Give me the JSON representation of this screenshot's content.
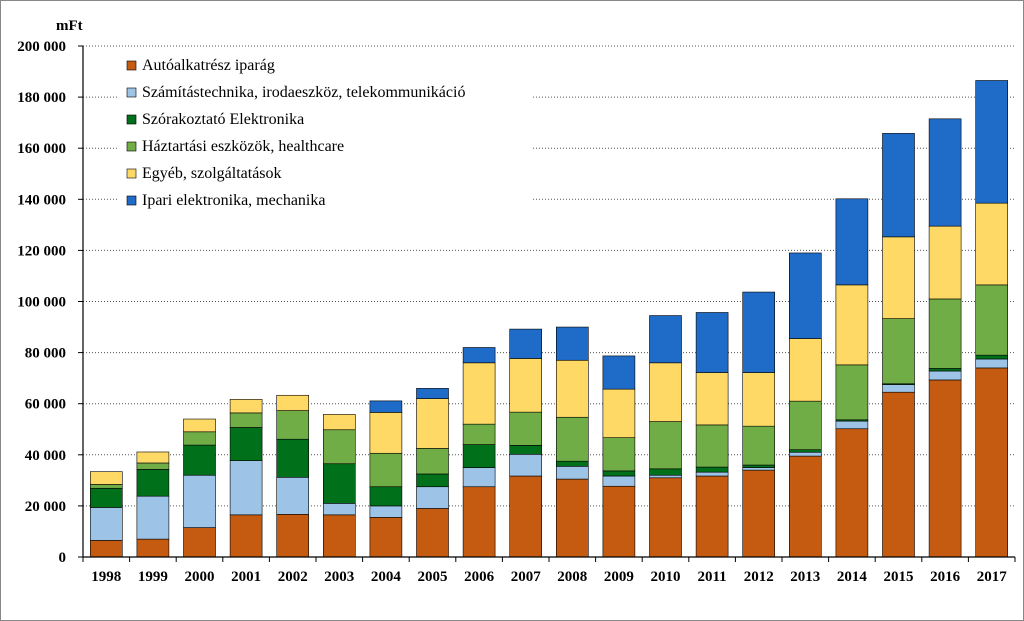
{
  "chart_data": {
    "type": "bar",
    "stacked": true,
    "unit_label": "mFt",
    "title": "",
    "xlabel": "",
    "ylabel": "",
    "ylim": [
      0,
      200000
    ],
    "y_ticks": [
      0,
      20000,
      40000,
      60000,
      80000,
      100000,
      120000,
      140000,
      160000,
      180000,
      200000
    ],
    "y_tick_labels": [
      "0",
      "20 000",
      "40 000",
      "60 000",
      "80 000",
      "100 000",
      "120 000",
      "140 000",
      "160 000",
      "180 000",
      "200 000"
    ],
    "grid": "horizontal dotted",
    "legend_position": "top-left",
    "categories": [
      "1998",
      "1999",
      "2000",
      "2001",
      "2002",
      "2003",
      "2004",
      "2005",
      "2006",
      "2007",
      "2008",
      "2009",
      "2010",
      "2011",
      "2012",
      "2013",
      "2014",
      "2015",
      "2016",
      "2017"
    ],
    "series": [
      {
        "name": "Autóalkatrész iparág",
        "color": "#C55A11",
        "values": [
          6500,
          7000,
          11500,
          16500,
          16700,
          16500,
          15500,
          19000,
          27500,
          31700,
          30500,
          27700,
          31000,
          31700,
          34000,
          39500,
          50200,
          64500,
          69300,
          74000
        ]
      },
      {
        "name": "Számítástechnika, irodaeszköz, telekommunikáció",
        "color": "#9DC3E6",
        "values": [
          12900,
          16800,
          20500,
          21200,
          14500,
          4500,
          4500,
          8500,
          7500,
          8500,
          5000,
          4000,
          1000,
          1500,
          1000,
          1500,
          3000,
          3000,
          3500,
          3500
        ]
      },
      {
        "name": "Szórakoztató Elektronika",
        "color": "#00701A",
        "values": [
          7500,
          10500,
          11800,
          13000,
          14900,
          15500,
          7500,
          5000,
          9000,
          3500,
          2000,
          2000,
          2500,
          2000,
          1000,
          1000,
          500,
          300,
          1000,
          1500
        ]
      },
      {
        "name": "Háztartási eszközök, healthcare",
        "color": "#70AD47",
        "values": [
          1500,
          2500,
          5200,
          5700,
          11200,
          13300,
          13100,
          10000,
          8000,
          13000,
          17200,
          13000,
          18500,
          16500,
          15200,
          19000,
          21500,
          25500,
          27200,
          27500
        ]
      },
      {
        "name": "Egyéb, szolgáltatások",
        "color": "#FFD966",
        "values": [
          5000,
          4300,
          5000,
          5300,
          6000,
          6000,
          16000,
          19500,
          24000,
          21000,
          22300,
          19000,
          23000,
          20500,
          21000,
          24500,
          31300,
          32000,
          28500,
          32000
        ]
      },
      {
        "name": "Ipari elektronika, mechanika",
        "color": "#1F6BC8",
        "values": [
          0,
          0,
          0,
          0,
          0,
          0,
          4500,
          4000,
          6000,
          11500,
          13000,
          13000,
          18500,
          23500,
          31500,
          33500,
          33700,
          40500,
          42000,
          48000
        ]
      }
    ]
  }
}
